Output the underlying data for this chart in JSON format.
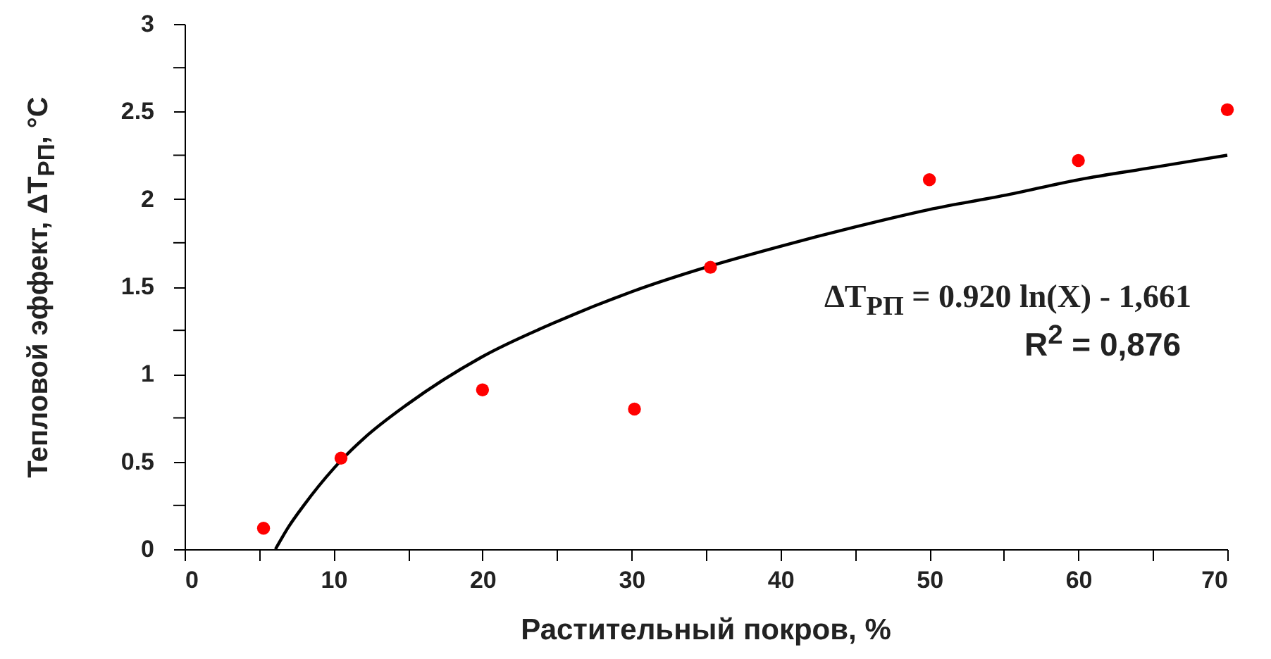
{
  "chart_data": {
    "type": "scatter",
    "xlabel": "Растительный покров, %",
    "ylabel": "Тепловой эффект, ΔT$_{РП}$, °C",
    "annotations": [
      "ΔT$_{РП}$ = 0.920  ln(X) - 1,661",
      "R$^{2}$ =  0,876"
    ],
    "xlim": [
      0,
      70
    ],
    "ylim": [
      0,
      3
    ],
    "xticks": [
      0,
      {
        "value": 5,
        "label": null
      },
      10,
      {
        "value": 15,
        "label": null
      },
      20,
      {
        "value": 25,
        "label": null
      },
      30,
      {
        "value": 35,
        "label": null
      },
      40,
      {
        "value": 45,
        "label": null
      },
      50,
      {
        "value": 55,
        "label": null
      },
      60,
      {
        "value": 65,
        "label": null
      },
      70
    ],
    "yticks": [
      0,
      {
        "value": 0.25,
        "label": null
      },
      0.5,
      {
        "value": 0.75,
        "label": null
      },
      1,
      {
        "value": 1.25,
        "label": null
      },
      1.5,
      {
        "value": 1.75,
        "label": null
      },
      2,
      {
        "value": 2.25,
        "label": null
      },
      2.5,
      {
        "value": 2.75,
        "label": null
      },
      3
    ],
    "marker": "circle",
    "grid": false,
    "series": [
      {
        "color": "#ff0000",
        "x": [
          5.3,
          10.5,
          20,
          30.2,
          35.3,
          50,
          60,
          70
        ],
        "values": [
          0.12,
          0.52,
          0.91,
          0.8,
          1.61,
          2.11,
          2.22,
          2.51
        ]
      },
      {
        "type": "line",
        "marker": "none",
        "color": "#000000",
        "x": [
          6.1,
          7,
          8,
          10,
          12,
          15,
          20,
          25,
          30,
          35,
          40,
          45,
          50,
          55,
          60,
          65,
          70
        ],
        "values": [
          0,
          0.13,
          0.25,
          0.46,
          0.63,
          0.83,
          1.1,
          1.3,
          1.47,
          1.61,
          1.73,
          1.84,
          1.94,
          2.02,
          2.11,
          2.18,
          2.25
        ]
      }
    ]
  }
}
